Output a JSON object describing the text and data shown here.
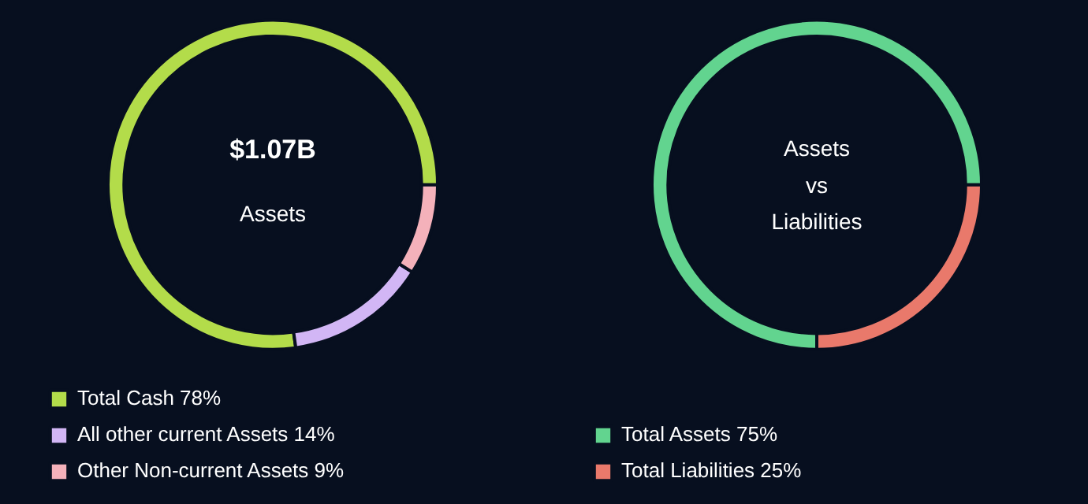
{
  "chart_data": [
    {
      "type": "donut",
      "categories": [
        "Total Cash",
        "All other current Assets",
        "Other Non-current Assets"
      ],
      "values": [
        78,
        14,
        9
      ],
      "value_labels": [
        "78%",
        "14%",
        "9%"
      ],
      "colors": [
        "#b3dc4a",
        "#d2b6f5",
        "#f4b1ba"
      ],
      "annotations": [
        "$1.07B",
        "Assets"
      ],
      "legend": "bottom"
    },
    {
      "type": "donut",
      "categories": [
        "Total Assets",
        "Total Liabilities"
      ],
      "values": [
        75,
        25
      ],
      "value_labels": [
        "75%",
        "25%"
      ],
      "colors": [
        "#62d48f",
        "#e9796b"
      ],
      "annotations": [
        "Assets\nvs\nLiabilities"
      ],
      "legend": "bottom"
    }
  ]
}
